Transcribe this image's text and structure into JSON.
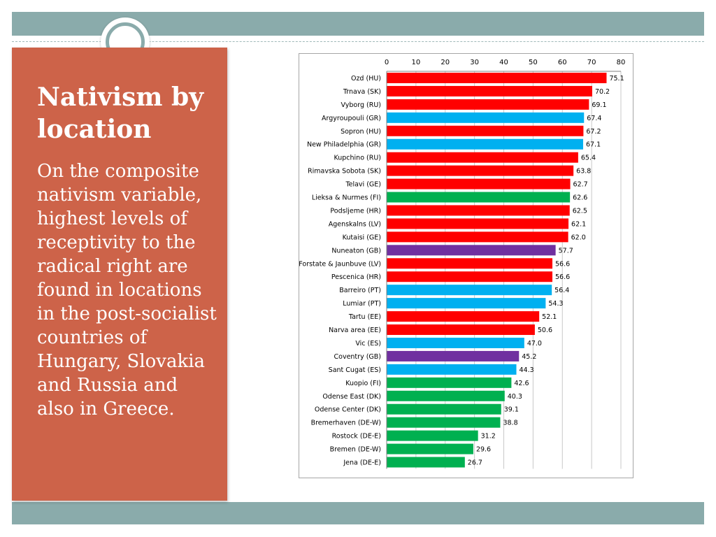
{
  "slide": {
    "title": "Nativism by location",
    "body": "On the composite nativism variable,  highest levels of receptivity to the radical right are found in locations in the post-socialist countries of Hungary, Slovakia and Russia and also in Greece."
  },
  "colors": {
    "band": "#8aabab",
    "panel": "#cd6349",
    "red": "#ff0000",
    "blue": "#00b0f0",
    "green": "#00b050",
    "purple": "#7030a0"
  },
  "chart_data": {
    "type": "bar",
    "orientation": "horizontal",
    "title": "",
    "xlabel": "",
    "ylabel": "",
    "xlim": [
      0,
      80
    ],
    "xticks": [
      0,
      10,
      20,
      30,
      40,
      50,
      60,
      70,
      80
    ],
    "x_axis_position": "top",
    "grid": "vertical",
    "legend": "none",
    "categories": [
      "Ozd (HU)",
      "Trnava (SK)",
      "Vyborg (RU)",
      "Argyroupouli (GR)",
      "Sopron (HU)",
      "New Philadelphia (GR)",
      "Kupchino (RU)",
      "Rimavska Sobota (SK)",
      "Telavi (GE)",
      "Lieksa & Nurmes (FI)",
      "Podsljeme (HR)",
      "Agenskalns (LV)",
      "Kutaisi (GE)",
      "Nuneaton (GB)",
      "Forstate & Jaunbuve (LV)",
      "Pescenica (HR)",
      "Barreiro (PT)",
      "Lumiar (PT)",
      "Tartu (EE)",
      "Narva area (EE)",
      "Vic (ES)",
      "Coventry (GB)",
      "Sant Cugat (ES)",
      "Kuopio (FI)",
      "Odense East (DK)",
      "Odense Center (DK)",
      "Bremerhaven (DE-W)",
      "Rostock (DE-E)",
      "Bremen (DE-W)",
      "Jena (DE-E)"
    ],
    "values": [
      75.1,
      70.2,
      69.1,
      67.4,
      67.2,
      67.1,
      65.4,
      63.8,
      62.7,
      62.6,
      62.5,
      62.1,
      62.0,
      57.7,
      56.6,
      56.6,
      56.4,
      54.3,
      52.1,
      50.6,
      47.0,
      45.2,
      44.3,
      42.6,
      40.3,
      39.1,
      38.8,
      31.2,
      29.6,
      26.7
    ],
    "value_labels": [
      "75.1",
      "70.2",
      "69.1",
      "67.4",
      "67.2",
      "67.1",
      "65.4",
      "63.8",
      "62.7",
      "62.6",
      "62.5",
      "62.1",
      "62.0",
      "57.7",
      "56.6",
      "56.6",
      "56.4",
      "54.3",
      "52.1",
      "50.6",
      "47.0",
      "45.2",
      "44.3",
      "42.6",
      "40.3",
      "39.1",
      "38.8",
      "31.2",
      "29.6",
      "26.7"
    ],
    "bar_colors": [
      "red",
      "red",
      "red",
      "blue",
      "red",
      "blue",
      "red",
      "red",
      "red",
      "green",
      "red",
      "red",
      "red",
      "purple",
      "red",
      "red",
      "blue",
      "blue",
      "red",
      "red",
      "blue",
      "purple",
      "blue",
      "green",
      "green",
      "green",
      "green",
      "green",
      "green",
      "green"
    ]
  }
}
